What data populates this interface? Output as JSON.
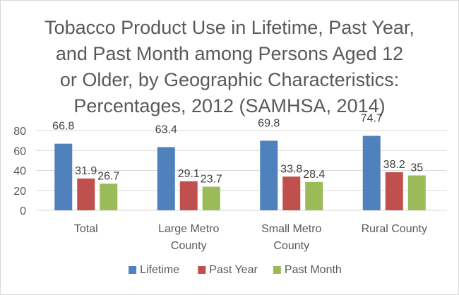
{
  "chart_data": {
    "type": "bar",
    "title_lines": [
      "Tobacco Product Use in Lifetime, Past Year,",
      "and Past Month among Persons Aged 12",
      "or Older, by Geographic Characteristics:",
      "Percentages, 2012 (SAMHSA, 2014)"
    ],
    "categories": [
      [
        "Total"
      ],
      [
        "Large Metro",
        "County"
      ],
      [
        "Small Metro",
        "County"
      ],
      [
        "Rural County"
      ]
    ],
    "series": [
      {
        "name": "Lifetime",
        "color": "#4f81bd",
        "values": [
          66.8,
          63.4,
          69.8,
          74.7
        ],
        "labels": [
          "66.8",
          "63.4",
          "69.8",
          "74.7"
        ]
      },
      {
        "name": "Past Year",
        "color": "#c0504d",
        "values": [
          31.9,
          29.1,
          33.8,
          38.2
        ],
        "labels": [
          "31.9",
          "29.1",
          "33.8",
          "38.2"
        ]
      },
      {
        "name": "Past Month",
        "color": "#9bbb59",
        "values": [
          26.7,
          23.7,
          28.4,
          35
        ],
        "labels": [
          "26.7",
          "23.7",
          "28.4",
          "35"
        ]
      }
    ],
    "ylim": [
      0,
      80
    ],
    "yticks": [
      0,
      20,
      40,
      60,
      80
    ],
    "grid": true,
    "legend": "bottom"
  }
}
